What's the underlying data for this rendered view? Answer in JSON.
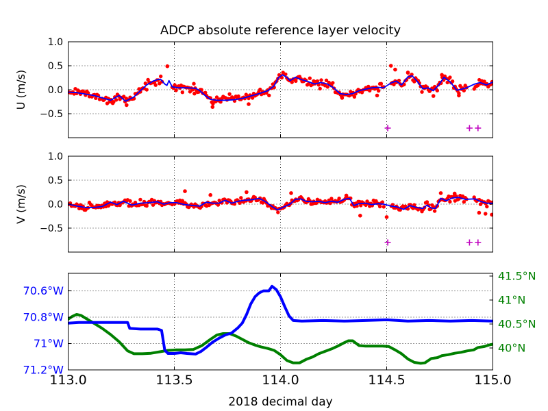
{
  "title": "ADCP absolute reference layer velocity",
  "xaxis": {
    "label": "2018 decimal day",
    "min": 113.0,
    "max": 115.0,
    "ticks": [
      {
        "v": 113.0,
        "label": "113.0"
      },
      {
        "v": 113.5,
        "label": "113.5"
      },
      {
        "v": 114.0,
        "label": "114.0"
      },
      {
        "v": 114.5,
        "label": "114.5"
      },
      {
        "v": 115.0,
        "label": "115.0"
      }
    ]
  },
  "colors": {
    "scatter": "#ff0000",
    "smoothed_line": "#0000ff",
    "flag_marker": "#bf00bf",
    "longitude": "#0000ff",
    "latitude": "#008000",
    "grid": "#222222"
  },
  "chart_data": [
    {
      "id": "u",
      "type": "scatter",
      "ylabel": "U (m/s)",
      "ylim": [
        -1.0,
        1.0
      ],
      "grid": true,
      "yticks": [
        {
          "v": 1.0,
          "label": "1.0"
        },
        {
          "v": 0.5,
          "label": "0.5"
        },
        {
          "v": 0.0,
          "label": "0.0"
        },
        {
          "v": -0.5,
          "label": "−0.5"
        }
      ],
      "series": [
        {
          "name": "adcp-raw-estimates",
          "type": "scatter",
          "color": "#ff0000",
          "noise_sigma": 0.04,
          "dot_interval_days": 0.006
        },
        {
          "name": "smoothed-reference-velocity",
          "type": "line",
          "color": "#0000ff",
          "x": [
            113.0,
            113.04,
            113.08,
            113.12,
            113.16,
            113.2,
            113.24,
            113.27,
            113.31,
            113.34,
            113.37,
            113.4,
            113.42,
            113.435,
            113.455,
            113.465,
            113.475,
            113.49,
            113.52,
            113.56,
            113.6,
            113.62,
            113.645,
            113.67,
            113.7,
            113.74,
            113.78,
            113.82,
            113.86,
            113.9,
            113.94,
            113.97,
            113.99,
            114.01,
            114.03,
            114.045,
            114.07,
            114.1,
            114.13,
            114.16,
            114.19,
            114.22,
            114.25,
            114.28,
            114.31,
            114.34,
            114.37,
            114.4,
            114.43,
            114.46,
            114.485,
            114.52,
            114.545,
            114.57,
            114.6,
            114.62,
            114.645,
            114.67,
            114.695,
            114.72,
            114.745,
            114.77,
            114.8,
            114.83,
            114.86,
            114.875,
            114.915,
            114.94,
            114.97,
            115.0
          ],
          "y": [
            -0.05,
            -0.06,
            -0.09,
            -0.12,
            -0.17,
            -0.22,
            -0.12,
            -0.24,
            -0.15,
            -0.02,
            0.1,
            0.18,
            0.21,
            0.22,
            0.12,
            0.09,
            0.19,
            0.06,
            0.04,
            0.04,
            0.03,
            -0.02,
            -0.12,
            -0.2,
            -0.22,
            -0.22,
            -0.21,
            -0.18,
            -0.13,
            -0.08,
            -0.02,
            0.08,
            0.25,
            0.31,
            0.26,
            0.19,
            0.26,
            0.21,
            0.17,
            0.12,
            0.15,
            0.12,
            0.04,
            -0.08,
            -0.1,
            -0.08,
            -0.02,
            0.01,
            0.04,
            0.05,
            0.04,
            0.14,
            0.18,
            0.1,
            0.27,
            0.29,
            0.17,
            0.02,
            0.04,
            -0.02,
            0.1,
            0.26,
            0.16,
            -0.01,
            0.02,
            0.04,
            0.12,
            0.15,
            0.1,
            0.16
          ]
        }
      ],
      "outliers": [
        [
          113.467,
          0.49
        ],
        [
          113.21,
          -0.28
        ],
        [
          113.275,
          -0.32
        ],
        [
          113.595,
          -0.08
        ],
        [
          113.68,
          -0.36
        ],
        [
          113.85,
          -0.3
        ],
        [
          114.29,
          -0.17
        ],
        [
          114.455,
          -0.12
        ],
        [
          114.52,
          0.5
        ],
        [
          114.54,
          0.42
        ],
        [
          114.6,
          0.36
        ],
        [
          114.72,
          -0.13
        ],
        [
          114.76,
          0.31
        ],
        [
          114.84,
          -0.12
        ]
      ],
      "scatter_gaps": [
        [
          113.443,
          113.487
        ],
        [
          114.487,
          114.517
        ],
        [
          114.877,
          114.912
        ]
      ],
      "line_gaps": [
        [
          114.487,
          114.517
        ],
        [
          114.877,
          114.912
        ]
      ],
      "flags": {
        "marker": "+",
        "color": "#bf00bf",
        "y": -0.8,
        "x": [
          114.505,
          114.89,
          114.93
        ]
      }
    },
    {
      "id": "v",
      "type": "scatter",
      "ylabel": "V (m/s)",
      "ylim": [
        -1.0,
        1.0
      ],
      "grid": true,
      "yticks": [
        {
          "v": 1.0,
          "label": "1.0"
        },
        {
          "v": 0.5,
          "label": "0.5"
        },
        {
          "v": 0.0,
          "label": "0.0"
        },
        {
          "v": -0.5,
          "label": "−0.5"
        }
      ],
      "series": [
        {
          "name": "adcp-raw-estimates",
          "type": "scatter",
          "color": "#ff0000",
          "noise_sigma": 0.035,
          "dot_interval_days": 0.006
        },
        {
          "name": "smoothed-reference-velocity",
          "type": "line",
          "color": "#0000ff",
          "x": [
            113.0,
            113.04,
            113.08,
            113.12,
            113.16,
            113.2,
            113.23,
            113.26,
            113.3,
            113.34,
            113.38,
            113.42,
            113.45,
            113.48,
            113.51,
            113.55,
            113.59,
            113.62,
            113.65,
            113.68,
            113.71,
            113.74,
            113.77,
            113.8,
            113.83,
            113.86,
            113.9,
            113.93,
            113.96,
            113.985,
            114.01,
            114.045,
            114.07,
            114.095,
            114.12,
            114.15,
            114.18,
            114.21,
            114.24,
            114.27,
            114.3,
            114.325,
            114.345,
            114.37,
            114.4,
            114.43,
            114.46,
            114.485,
            114.52,
            114.55,
            114.58,
            114.61,
            114.64,
            114.67,
            114.69,
            114.71,
            114.73,
            114.755,
            114.78,
            114.81,
            114.84,
            114.87,
            114.915,
            114.94,
            114.97,
            115.0
          ],
          "y": [
            0.0,
            -0.04,
            -0.07,
            -0.07,
            -0.05,
            0.04,
            -0.01,
            0.06,
            -0.02,
            0.02,
            0.03,
            0.05,
            0.0,
            0.03,
            0.03,
            -0.01,
            -0.03,
            -0.04,
            0.04,
            0.02,
            0.02,
            0.08,
            0.02,
            0.06,
            0.08,
            0.09,
            0.12,
            0.05,
            -0.05,
            -0.12,
            -0.07,
            0.0,
            0.1,
            0.11,
            0.06,
            0.05,
            0.06,
            0.03,
            0.06,
            0.04,
            0.1,
            0.12,
            -0.03,
            0.01,
            0.02,
            -0.01,
            0.01,
            0.0,
            -0.04,
            -0.06,
            -0.11,
            -0.03,
            -0.07,
            -0.09,
            -0.02,
            -0.08,
            -0.09,
            0.12,
            0.07,
            0.13,
            0.14,
            0.1,
            0.11,
            0.06,
            0.02,
            0.02
          ]
        }
      ],
      "outliers": [
        [
          113.55,
          0.27
        ],
        [
          113.67,
          0.19
        ],
        [
          113.84,
          0.25
        ],
        [
          114.05,
          0.23
        ],
        [
          114.31,
          0.18
        ],
        [
          114.375,
          -0.24
        ],
        [
          114.5,
          -0.27
        ],
        [
          114.755,
          0.23
        ],
        [
          114.82,
          0.22
        ],
        [
          114.935,
          -0.18
        ],
        [
          114.965,
          -0.2
        ],
        [
          114.995,
          -0.22
        ]
      ],
      "scatter_gaps": [
        [
          114.487,
          114.517
        ],
        [
          114.877,
          114.912
        ]
      ],
      "line_gaps": [
        [
          114.487,
          114.517
        ],
        [
          114.877,
          114.912
        ]
      ],
      "flags": {
        "marker": "+",
        "color": "#bf00bf",
        "y": -0.8,
        "x": [
          114.505,
          114.89,
          114.93
        ]
      }
    },
    {
      "id": "nav",
      "type": "line",
      "grid": true,
      "left_axis": {
        "name": "longitude",
        "color": "#0000ff",
        "ylim": [
          70.467,
          71.2
        ],
        "inverted": true,
        "ticks": [
          {
            "v": 70.6,
            "label": "70.6°W"
          },
          {
            "v": 70.8,
            "label": "70.8°W"
          },
          {
            "v": 71.0,
            "label": "71°W"
          },
          {
            "v": 71.2,
            "label": "71.2°W"
          }
        ]
      },
      "right_axis": {
        "name": "latitude",
        "color": "#008000",
        "ylim": [
          39.543,
          41.557
        ],
        "ticks": [
          {
            "v": 41.5,
            "label": "41.5°N"
          },
          {
            "v": 41.0,
            "label": "41°N"
          },
          {
            "v": 40.5,
            "label": "40.5°N"
          },
          {
            "v": 40.0,
            "label": "40°N"
          }
        ]
      },
      "series": [
        {
          "name": "latitude",
          "axis": "right",
          "color": "#008000",
          "linewidth": 4,
          "x": [
            113.0,
            113.02,
            113.04,
            113.06,
            113.09,
            113.12,
            113.16,
            113.2,
            113.24,
            113.28,
            113.31,
            113.35,
            113.39,
            113.43,
            113.47,
            113.51,
            113.55,
            113.59,
            113.63,
            113.67,
            113.7,
            113.73,
            113.76,
            113.79,
            113.82,
            113.85,
            113.88,
            113.91,
            113.94,
            113.97,
            114.0,
            114.03,
            114.06,
            114.09,
            114.12,
            114.15,
            114.18,
            114.21,
            114.24,
            114.27,
            114.3,
            114.32,
            114.34,
            114.37,
            114.4,
            114.44,
            114.48,
            114.51,
            114.54,
            114.57,
            114.6,
            114.63,
            114.66,
            114.68,
            114.71,
            114.74,
            114.76,
            114.79,
            114.82,
            114.85,
            114.88,
            114.91,
            114.93,
            114.96,
            114.98,
            115.0
          ],
          "y": [
            40.6,
            40.66,
            40.7,
            40.68,
            40.6,
            40.52,
            40.41,
            40.28,
            40.13,
            39.94,
            39.88,
            39.88,
            39.89,
            39.92,
            39.95,
            39.96,
            39.96,
            39.97,
            40.05,
            40.18,
            40.27,
            40.3,
            40.3,
            40.25,
            40.18,
            40.11,
            40.06,
            40.02,
            39.99,
            39.95,
            39.86,
            39.74,
            39.69,
            39.69,
            39.76,
            39.81,
            39.88,
            39.93,
            39.98,
            40.04,
            40.11,
            40.15,
            40.15,
            40.05,
            40.04,
            40.04,
            40.04,
            40.03,
            39.96,
            39.88,
            39.77,
            39.7,
            39.68,
            39.69,
            39.78,
            39.8,
            39.84,
            39.86,
            39.89,
            39.91,
            39.94,
            39.96,
            40.01,
            40.03,
            40.06,
            40.08
          ]
        },
        {
          "name": "longitude",
          "axis": "left",
          "color": "#0000ff",
          "linewidth": 4,
          "x": [
            113.0,
            113.05,
            113.1,
            113.15,
            113.2,
            113.24,
            113.28,
            113.29,
            113.34,
            113.38,
            113.42,
            113.44,
            113.455,
            113.47,
            113.5,
            113.53,
            113.56,
            113.6,
            113.625,
            113.65,
            113.68,
            113.71,
            113.74,
            113.77,
            113.8,
            113.82,
            113.84,
            113.86,
            113.88,
            113.9,
            113.92,
            113.945,
            113.96,
            113.98,
            114.0,
            114.02,
            114.04,
            114.06,
            114.1,
            114.2,
            114.3,
            114.4,
            114.5,
            114.6,
            114.7,
            114.8,
            114.9,
            115.0
          ],
          "y": [
            70.845,
            70.84,
            70.84,
            70.84,
            70.84,
            70.84,
            70.84,
            70.885,
            70.89,
            70.89,
            70.89,
            70.9,
            71.05,
            71.075,
            71.075,
            71.07,
            71.075,
            71.08,
            71.06,
            71.03,
            70.99,
            70.96,
            70.935,
            70.92,
            70.88,
            70.845,
            70.78,
            70.7,
            70.645,
            70.615,
            70.6,
            70.6,
            70.565,
            70.59,
            70.645,
            70.72,
            70.79,
            70.825,
            70.83,
            70.825,
            70.83,
            70.825,
            70.82,
            70.83,
            70.825,
            70.83,
            70.825,
            70.83
          ]
        }
      ]
    }
  ]
}
